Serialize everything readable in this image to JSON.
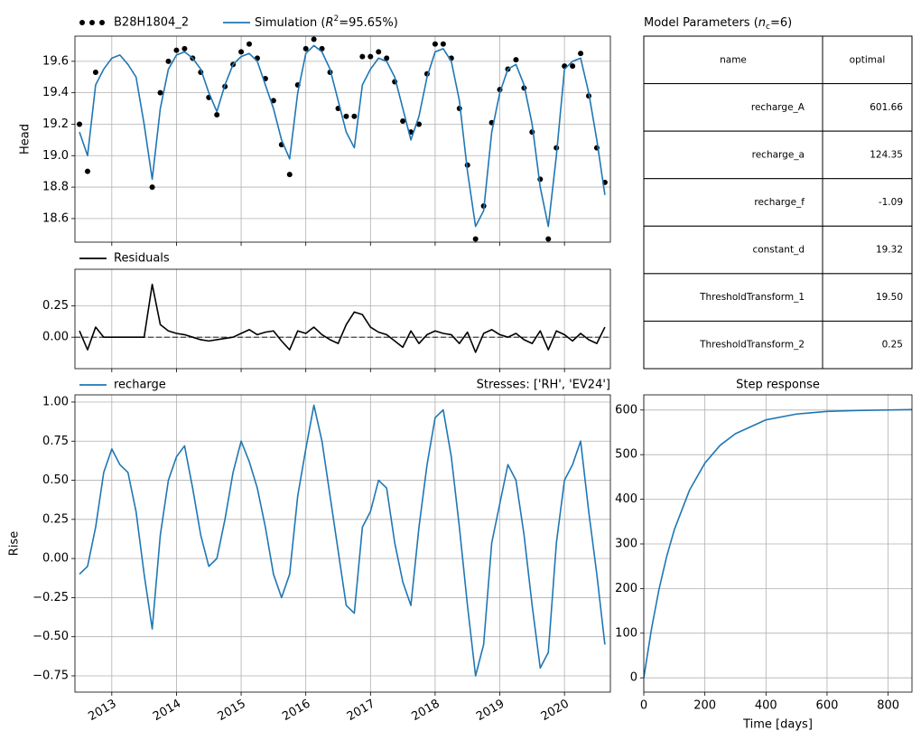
{
  "chart_data": [
    {
      "type": "line",
      "ylabel": "Head",
      "x": [
        2012.5,
        2012.625,
        2012.75,
        2012.875,
        2013,
        2013.125,
        2013.25,
        2013.375,
        2013.5,
        2013.625,
        2013.75,
        2013.875,
        2014,
        2014.125,
        2014.25,
        2014.375,
        2014.5,
        2014.625,
        2014.75,
        2014.875,
        2015,
        2015.125,
        2015.25,
        2015.375,
        2015.5,
        2015.625,
        2015.75,
        2015.875,
        2016,
        2016.125,
        2016.25,
        2016.375,
        2016.5,
        2016.625,
        2016.75,
        2016.875,
        2017,
        2017.125,
        2017.25,
        2017.375,
        2017.5,
        2017.625,
        2017.75,
        2017.875,
        2018,
        2018.125,
        2018.25,
        2018.375,
        2018.5,
        2018.625,
        2018.75,
        2018.875,
        2019,
        2019.125,
        2019.25,
        2019.375,
        2019.5,
        2019.625,
        2019.75,
        2019.875,
        2020,
        2020.125,
        2020.25,
        2020.375,
        2020.5,
        2020.625
      ],
      "series": [
        {
          "name": "B28H1804_2",
          "color": "#000000",
          "style": "dots",
          "values": [
            19.2,
            18.9,
            19.53,
            null,
            null,
            null,
            null,
            null,
            null,
            18.8,
            19.4,
            19.6,
            19.67,
            19.68,
            19.62,
            19.53,
            19.37,
            19.26,
            19.44,
            19.58,
            19.66,
            19.71,
            19.62,
            19.49,
            19.35,
            19.07,
            18.88,
            19.45,
            19.68,
            19.74,
            19.68,
            19.53,
            19.3,
            19.25,
            19.25,
            19.63,
            19.63,
            19.66,
            19.62,
            19.47,
            19.22,
            19.15,
            19.2,
            19.52,
            19.71,
            19.71,
            19.62,
            19.3,
            18.94,
            18.47,
            18.68,
            19.21,
            19.42,
            19.55,
            19.61,
            19.43,
            19.15,
            18.85,
            18.47,
            19.05,
            19.57,
            19.57,
            19.65,
            19.38,
            19.05,
            18.83
          ]
        },
        {
          "name": [
            "Simulation (",
            "R",
            "2",
            "=95.65%)"
          ],
          "color": "#1f77b4",
          "style": "line",
          "values": [
            19.15,
            19.0,
            19.45,
            19.55,
            19.62,
            19.64,
            19.58,
            19.5,
            19.2,
            18.85,
            19.3,
            19.55,
            19.64,
            19.66,
            19.62,
            19.55,
            19.4,
            19.28,
            19.45,
            19.58,
            19.63,
            19.65,
            19.6,
            19.45,
            19.3,
            19.1,
            18.98,
            19.4,
            19.65,
            19.7,
            19.66,
            19.55,
            19.35,
            19.15,
            19.05,
            19.45,
            19.55,
            19.62,
            19.6,
            19.5,
            19.3,
            19.1,
            19.25,
            19.5,
            19.66,
            19.68,
            19.6,
            19.35,
            18.9,
            18.55,
            18.65,
            19.15,
            19.4,
            19.55,
            19.58,
            19.45,
            19.2,
            18.8,
            18.55,
            19.0,
            19.55,
            19.6,
            19.62,
            19.4,
            19.1,
            18.75
          ]
        }
      ],
      "xlim": [
        2012.43,
        2020.71
      ],
      "xticks": [
        2013,
        2014,
        2015,
        2016,
        2017,
        2018,
        2019,
        2020
      ],
      "xtick_labels": false,
      "ylim": [
        18.45,
        19.76
      ],
      "yticks": [
        18.6,
        18.8,
        {
          "value": 19,
          "label": "19.0"
        },
        19.2,
        19.4,
        19.6
      ],
      "grid": true
    },
    {
      "type": "line",
      "x": [
        2012.5,
        2012.625,
        2012.75,
        2012.875,
        2013,
        2013.125,
        2013.25,
        2013.375,
        2013.5,
        2013.625,
        2013.75,
        2013.875,
        2014,
        2014.125,
        2014.25,
        2014.375,
        2014.5,
        2014.625,
        2014.75,
        2014.875,
        2015,
        2015.125,
        2015.25,
        2015.375,
        2015.5,
        2015.625,
        2015.75,
        2015.875,
        2016,
        2016.125,
        2016.25,
        2016.375,
        2016.5,
        2016.625,
        2016.75,
        2016.875,
        2017,
        2017.125,
        2017.25,
        2017.375,
        2017.5,
        2017.625,
        2017.75,
        2017.875,
        2018,
        2018.125,
        2018.25,
        2018.375,
        2018.5,
        2018.625,
        2018.75,
        2018.875,
        2019,
        2019.125,
        2019.25,
        2019.375,
        2019.5,
        2019.625,
        2019.75,
        2019.875,
        2020,
        2020.125,
        2020.25,
        2020.375,
        2020.5,
        2020.625
      ],
      "series": [
        {
          "name": "Residuals",
          "color": "#000000",
          "style": "line",
          "values": [
            0.05,
            -0.1,
            0.08,
            0,
            0,
            0,
            0,
            0,
            0,
            0.42,
            0.1,
            0.05,
            0.03,
            0.02,
            0,
            -0.02,
            -0.03,
            -0.02,
            -0.01,
            0,
            0.03,
            0.06,
            0.02,
            0.04,
            0.05,
            -0.03,
            -0.1,
            0.05,
            0.03,
            0.08,
            0.02,
            -0.02,
            -0.05,
            0.1,
            0.2,
            0.18,
            0.08,
            0.04,
            0.02,
            -0.03,
            -0.08,
            0.05,
            -0.05,
            0.02,
            0.05,
            0.03,
            0.02,
            -0.05,
            0.04,
            -0.12,
            0.03,
            0.06,
            0.02,
            0,
            0.03,
            -0.02,
            -0.05,
            0.05,
            -0.1,
            0.05,
            0.02,
            -0.03,
            0.03,
            -0.02,
            -0.05,
            0.08
          ]
        }
      ],
      "xlim": [
        2012.43,
        2020.71
      ],
      "xticks": [
        2013,
        2014,
        2015,
        2016,
        2017,
        2018,
        2019,
        2020
      ],
      "xtick_labels": false,
      "ylim": [
        -0.25,
        0.54
      ],
      "yticks": [
        {
          "value": 0,
          "label": "0.00"
        },
        0.25
      ],
      "grid": true,
      "zero_line": true
    },
    {
      "type": "line",
      "ylabel": "Rise",
      "annotation": "Stresses: ['RH', 'EV24']",
      "x": [
        2012.5,
        2012.625,
        2012.75,
        2012.875,
        2013,
        2013.125,
        2013.25,
        2013.375,
        2013.5,
        2013.625,
        2013.75,
        2013.875,
        2014,
        2014.125,
        2014.25,
        2014.375,
        2014.5,
        2014.625,
        2014.75,
        2014.875,
        2015,
        2015.125,
        2015.25,
        2015.375,
        2015.5,
        2015.625,
        2015.75,
        2015.875,
        2016,
        2016.125,
        2016.25,
        2016.375,
        2016.5,
        2016.625,
        2016.75,
        2016.875,
        2017,
        2017.125,
        2017.25,
        2017.375,
        2017.5,
        2017.625,
        2017.75,
        2017.875,
        2018,
        2018.125,
        2018.25,
        2018.375,
        2018.5,
        2018.625,
        2018.75,
        2018.875,
        2019,
        2019.125,
        2019.25,
        2019.375,
        2019.5,
        2019.625,
        2019.75,
        2019.875,
        2020,
        2020.125,
        2020.25,
        2020.375,
        2020.5,
        2020.625
      ],
      "series": [
        {
          "name": "recharge",
          "color": "#1f77b4",
          "style": "line",
          "values": [
            -0.1,
            -0.05,
            0.2,
            0.55,
            0.7,
            0.6,
            0.55,
            0.3,
            -0.1,
            -0.45,
            0.15,
            0.5,
            0.65,
            0.72,
            0.45,
            0.15,
            -0.05,
            0,
            0.25,
            0.55,
            0.75,
            0.62,
            0.45,
            0.2,
            -0.1,
            -0.25,
            -0.1,
            0.4,
            0.7,
            0.98,
            0.75,
            0.4,
            0.05,
            -0.3,
            -0.35,
            0.2,
            0.3,
            0.5,
            0.45,
            0.1,
            -0.15,
            -0.3,
            0.2,
            0.6,
            0.9,
            0.95,
            0.65,
            0.2,
            -0.3,
            -0.75,
            -0.55,
            0.1,
            0.35,
            0.6,
            0.5,
            0.15,
            -0.3,
            -0.7,
            -0.6,
            0.1,
            0.5,
            0.6,
            0.75,
            0.3,
            -0.1,
            -0.55
          ]
        }
      ],
      "xlim": [
        2012.43,
        2020.71
      ],
      "xticks": [
        2013,
        2014,
        2015,
        2016,
        2017,
        2018,
        2019,
        2020
      ],
      "xtick_labels": true,
      "ylim": [
        -0.854,
        1.046
      ],
      "yticks": [
        {
          "value": -0.75,
          "label": "−0.75"
        },
        {
          "value": -0.5,
          "label": "−0.50"
        },
        {
          "value": -0.25,
          "label": "−0.25"
        },
        {
          "value": 0,
          "label": "0.00"
        },
        0.25,
        {
          "value": 0.5,
          "label": "0.50"
        },
        0.75,
        {
          "value": 1,
          "label": "1.00"
        }
      ],
      "grid": true
    },
    {
      "type": "line",
      "title": "Step response",
      "xlabel": "Time [days]",
      "x": [
        0,
        25,
        50,
        75,
        100,
        150,
        200,
        250,
        300,
        400,
        500,
        600,
        700,
        878
      ],
      "series": [
        {
          "color": "#1f77b4",
          "style": "line",
          "values": [
            0,
            109,
            199,
            272,
            332,
            421,
            481,
            521,
            547,
            578,
            591,
            597,
            599,
            601
          ]
        }
      ],
      "xlim": [
        0,
        878
      ],
      "xticks": [
        0,
        200,
        400,
        600,
        800
      ],
      "xtick_labels": true,
      "ylim": [
        -32,
        634
      ],
      "yticks": [
        0,
        100,
        200,
        300,
        400,
        500,
        600
      ],
      "grid": true
    }
  ],
  "table": {
    "title": [
      "Model Parameters (",
      "n",
      "c",
      "=6)"
    ],
    "header": [
      "name",
      "optimal"
    ],
    "rows": [
      [
        "recharge_A",
        "601.66"
      ],
      [
        "recharge_a",
        "124.35"
      ],
      [
        "recharge_f",
        "-1.09"
      ],
      [
        "constant_d",
        "19.32"
      ],
      [
        "ThresholdTransform_1",
        "19.50"
      ],
      [
        "ThresholdTransform_2",
        "0.25"
      ]
    ]
  }
}
